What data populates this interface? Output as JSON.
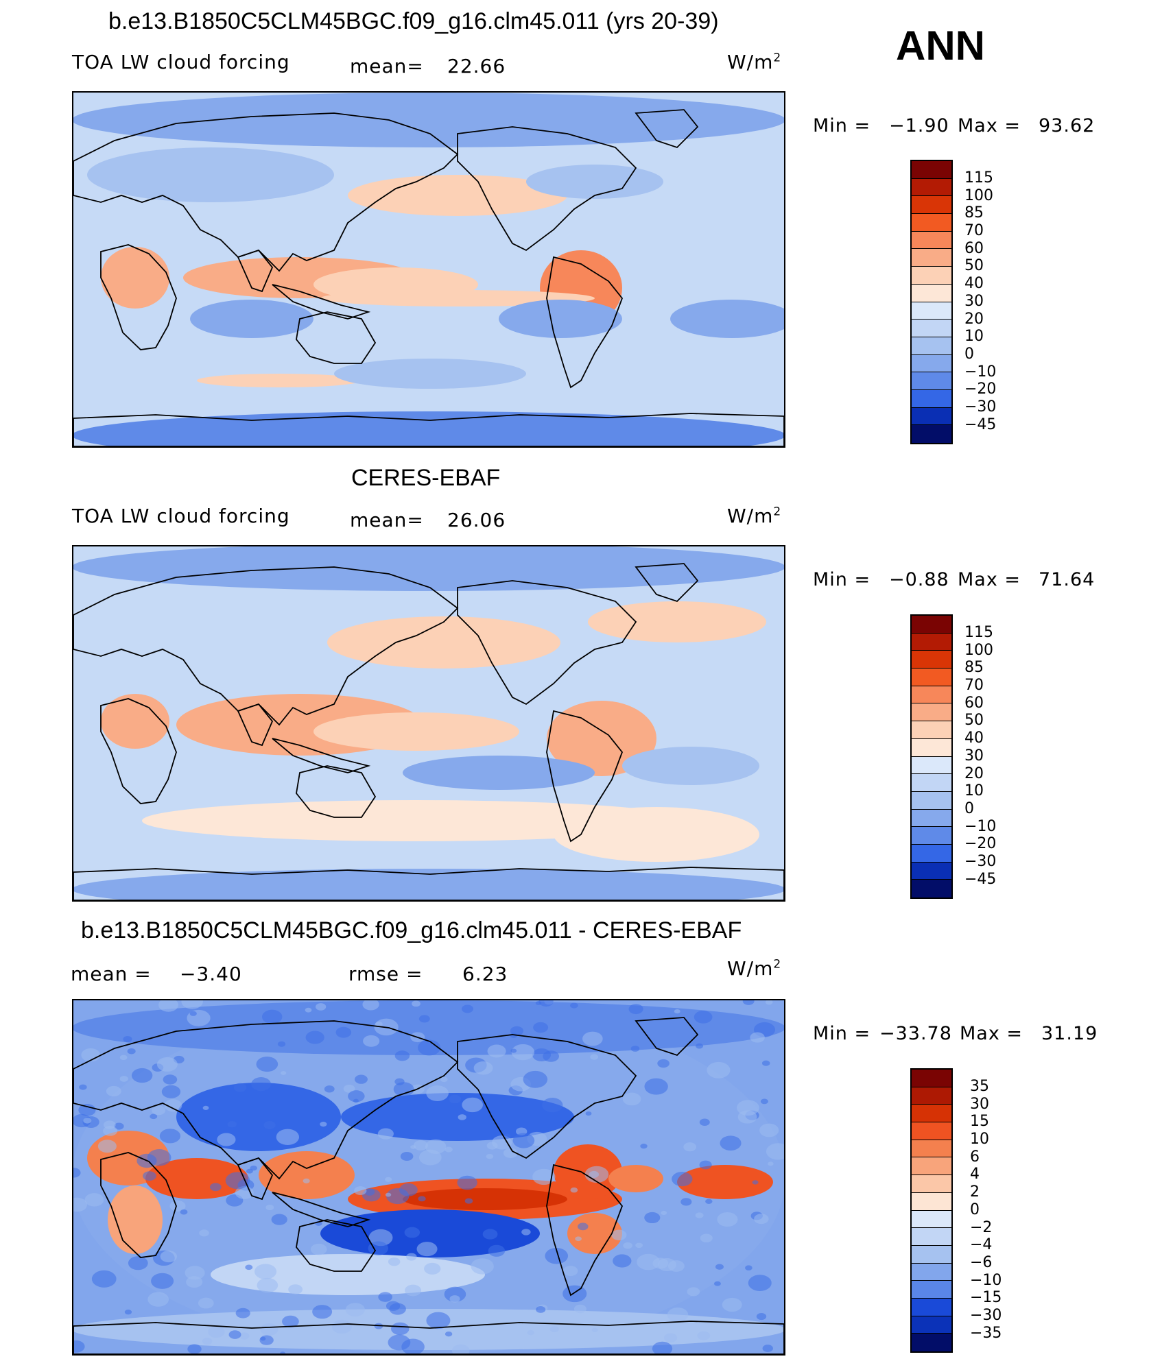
{
  "figure": {
    "season": "ANN",
    "units_base": "W/m",
    "units_exp": "2"
  },
  "palette": {
    "warm": [
      "#7a0403",
      "#b31b04",
      "#d93506",
      "#f25a22",
      "#f7875a",
      "#f9ac87",
      "#fcd1b6",
      "#fde7d7"
    ],
    "cool": [
      "#dbe8fa",
      "#c2d6f5",
      "#a6c2f0",
      "#86a9ec",
      "#5f8ae8",
      "#3467e6",
      "#1847d6",
      "#0a2fb4",
      "#051f8c",
      "#020d68"
    ],
    "diff": [
      "#7a0403",
      "#ad1903",
      "#d63205",
      "#ef5322",
      "#f4804e",
      "#f8a47b",
      "#fbc7a8",
      "#fde5d4",
      "#dbe8fa",
      "#c2d6f5",
      "#a6c2f0",
      "#82a6ec",
      "#5a86e8",
      "#3466e6",
      "#1a4ad8",
      "#0b32b8",
      "#061f90",
      "#020d68"
    ]
  },
  "chart_data": [
    {
      "type": "heatmap",
      "panel": "model",
      "title": "b.e13.B1850C5CLM45BGC.f09_g16.clm45.011 (yrs 20-39)",
      "variable": "TOA LW cloud forcing",
      "mean_label": "mean=",
      "mean_value": "22.66",
      "min_label": "Min =",
      "min_value": "−1.90",
      "max_label": "Max =",
      "max_value": "93.62",
      "contour_levels": [
        "115",
        "100",
        "85",
        "70",
        "60",
        "50",
        "40",
        "30",
        "20",
        "10",
        "0",
        "−10",
        "−20",
        "−30",
        "−45"
      ]
    },
    {
      "type": "heatmap",
      "panel": "observations",
      "title": "CERES-EBAF",
      "variable": "TOA LW cloud forcing",
      "mean_label": "mean=",
      "mean_value": "26.06",
      "min_label": "Min =",
      "min_value": "−0.88",
      "max_label": "Max =",
      "max_value": "71.64",
      "contour_levels": [
        "115",
        "100",
        "85",
        "70",
        "60",
        "50",
        "40",
        "30",
        "20",
        "10",
        "0",
        "−10",
        "−20",
        "−30",
        "−45"
      ]
    },
    {
      "type": "heatmap",
      "panel": "difference",
      "title": "b.e13.B1850C5CLM45BGC.f09_g16.clm45.011 - CERES-EBAF",
      "mean_label": "mean =",
      "mean_value": "−3.40",
      "rmse_label": "rmse =",
      "rmse_value": "6.23",
      "min_label": "Min =",
      "min_value": "−33.78",
      "max_label": "Max =",
      "max_value": "31.19",
      "contour_levels": [
        "35",
        "30",
        "15",
        "10",
        "6",
        "4",
        "2",
        "0",
        "−2",
        "−4",
        "−6",
        "−10",
        "−15",
        "−30",
        "−35"
      ]
    }
  ]
}
